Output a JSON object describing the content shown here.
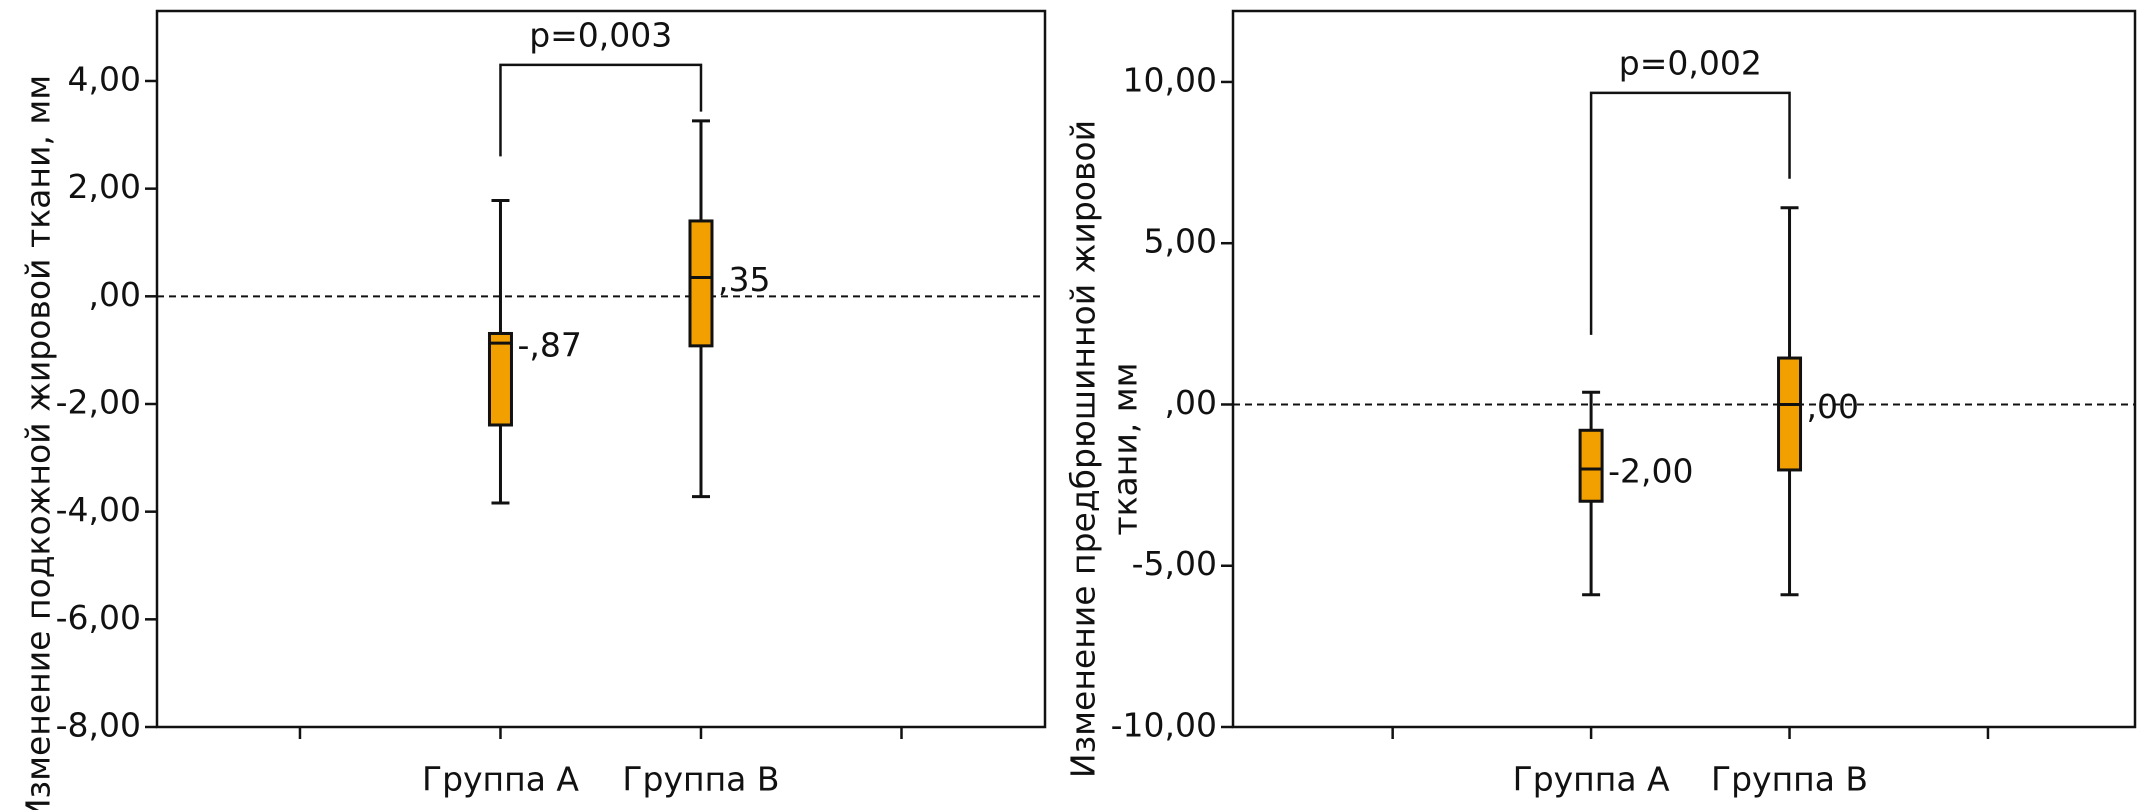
{
  "chart_data": [
    {
      "type": "box",
      "ylabel": [
        "Изменение подкожной жировой ткани, мм"
      ],
      "categories": [
        null,
        "Группа А",
        "Группа В",
        null
      ],
      "boxes": [
        null,
        {
          "whisker_low": -3.84,
          "q1": -2.39,
          "median": -0.87,
          "q3": -0.69,
          "whisker_high": 1.78
        },
        {
          "whisker_low": -3.72,
          "q1": -0.92,
          "median": 0.35,
          "q3": 1.4,
          "whisker_high": 3.26
        },
        null
      ],
      "value_labels": [
        null,
        "-,87",
        ",35",
        null
      ],
      "color": "#f2a000",
      "hline": 0,
      "annotation": {
        "text": "p=0,003",
        "from": 1,
        "to": 2,
        "left_y": 2.6,
        "top_y": 4.3,
        "right_y": 3.43
      },
      "ylim": [
        -8,
        5.3
      ],
      "yticks": [
        {
          "value": -8,
          "label": "-8,00"
        },
        {
          "value": -6,
          "label": "-6,00"
        },
        {
          "value": -4,
          "label": "-4,00"
        },
        {
          "value": -2,
          "label": "-2,00"
        },
        {
          "value": 0,
          "label": ",00"
        },
        {
          "value": 2,
          "label": "2,00"
        },
        {
          "value": 4,
          "label": "4,00"
        }
      ]
    },
    {
      "type": "box",
      "ylabel": [
        "Изменение предбрюшинной жировой",
        "ткани, мм"
      ],
      "categories": [
        null,
        "Группа А",
        "Группа В",
        null
      ],
      "boxes": [
        null,
        {
          "whisker_low": -5.9,
          "q1": -3.0,
          "median": -2.0,
          "q3": -0.8,
          "whisker_high": 0.38
        },
        {
          "whisker_low": -5.9,
          "q1": -2.03,
          "median": 0,
          "q3": 1.44,
          "whisker_high": 6.1
        },
        null
      ],
      "value_labels": [
        null,
        "-2,00",
        ",00",
        null
      ],
      "color": "#f2a000",
      "hline": 0,
      "annotation": {
        "text": "p=0,002",
        "from": 1,
        "to": 2,
        "left_y": 2.16,
        "top_y": 9.66,
        "right_y": 7.0
      },
      "ylim": [
        -10,
        12.2
      ],
      "yticks": [
        {
          "value": -10,
          "label": "-10,00"
        },
        {
          "value": -5,
          "label": "-5,00"
        },
        {
          "value": 0,
          "label": ",00"
        },
        {
          "value": 5,
          "label": "5,00"
        },
        {
          "value": 10,
          "label": "10,00"
        }
      ]
    }
  ]
}
